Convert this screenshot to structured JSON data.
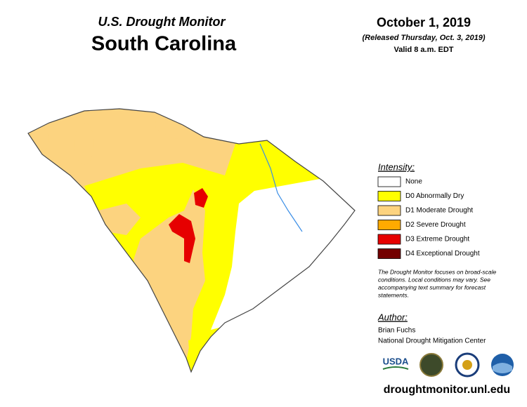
{
  "header": {
    "title": "U.S. Drought Monitor",
    "state": "South Carolina",
    "date": "October 1, 2019",
    "released": "(Released Thursday, Oct. 3, 2019)",
    "valid": "Valid 8 a.m. EDT"
  },
  "legend": {
    "title": "Intensity:",
    "items": [
      {
        "label": "None",
        "color": "#ffffff"
      },
      {
        "label": "D0 Abnormally Dry",
        "color": "#ffff00"
      },
      {
        "label": "D1 Moderate Drought",
        "color": "#fcd37f"
      },
      {
        "label": "D2 Severe Drought",
        "color": "#ffaa00"
      },
      {
        "label": "D3 Extreme Drought",
        "color": "#e60000"
      },
      {
        "label": "D4 Exceptional Drought",
        "color": "#730000"
      }
    ]
  },
  "note": [
    "The Drought Monitor focuses on broad-scale",
    "conditions. Local conditions may vary. See",
    "accompanying text summary for forecast",
    "statements."
  ],
  "author": {
    "title": "Author:",
    "name": "Brian Fuchs",
    "org": "National Drought Mitigation Center"
  },
  "logos": {
    "usda": "USDA"
  },
  "footer": "droughtmonitor.unl.edu"
}
